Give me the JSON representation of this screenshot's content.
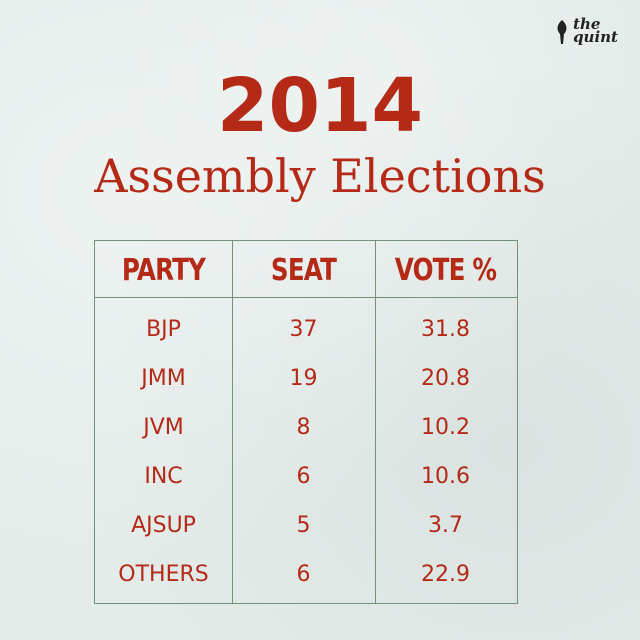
{
  "brand": {
    "line1": "the",
    "line2": "quint"
  },
  "header": {
    "year": "2014",
    "subtitle": "Assembly Elections"
  },
  "chart_data": {
    "type": "table",
    "columns": [
      "PARTY",
      "SEAT",
      "VOTE %"
    ],
    "rows": [
      {
        "party": "BJP",
        "seat": "37",
        "vote": "31.8"
      },
      {
        "party": "JMM",
        "seat": "19",
        "vote": "20.8"
      },
      {
        "party": "JVM",
        "seat": "8",
        "vote": "10.2"
      },
      {
        "party": "INC",
        "seat": "6",
        "vote": "10.6"
      },
      {
        "party": "AJSUP",
        "seat": "5",
        "vote": "3.7"
      },
      {
        "party": "OTHERS",
        "seat": "6",
        "vote": "22.9"
      }
    ]
  },
  "colors": {
    "text": "#b52a17",
    "border": "#6f9479",
    "background": "#e4ecea"
  }
}
